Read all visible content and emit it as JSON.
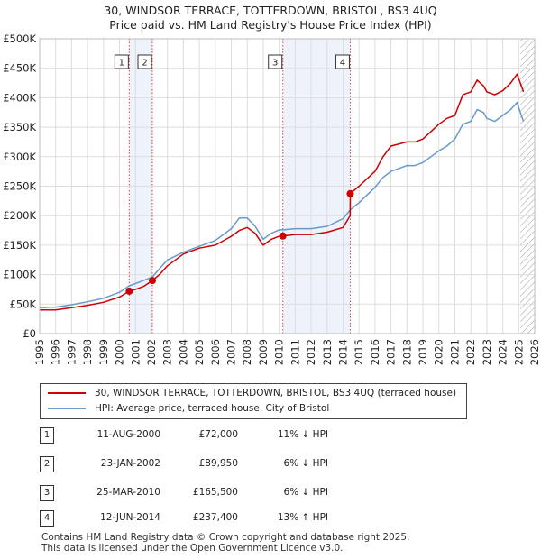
{
  "titles": {
    "line1": "30, WINDSOR TERRACE, TOTTERDOWN, BRISTOL, BS3 4UQ",
    "line2": "Price paid vs. HM Land Registry's House Price Index (HPI)"
  },
  "colors": {
    "property_line": "#cc0000",
    "hpi_line": "#6699cc",
    "highlight_band": "#eef2fb",
    "vline": "#dd4444",
    "grid": "#dddddd",
    "sale_dot": "#cc0000"
  },
  "legend": {
    "property_label": "30, WINDSOR TERRACE, TOTTERDOWN, BRISTOL, BS3 4UQ (terraced house)",
    "hpi_label": "HPI: Average price, terraced house, City of Bristol"
  },
  "transactions": [
    {
      "num": "1",
      "date": "11-AUG-2000",
      "price": "£72,000",
      "hpi": "11% ↓ HPI"
    },
    {
      "num": "2",
      "date": "23-JAN-2002",
      "price": "£89,950",
      "hpi": "6% ↓ HPI"
    },
    {
      "num": "3",
      "date": "25-MAR-2010",
      "price": "£165,500",
      "hpi": "6% ↓ HPI"
    },
    {
      "num": "4",
      "date": "12-JUN-2014",
      "price": "£237,400",
      "hpi": "13% ↑ HPI"
    }
  ],
  "footer": {
    "line1": "Contains HM Land Registry data © Crown copyright and database right 2025.",
    "line2": "This data is licensed under the Open Government Licence v3.0."
  },
  "chart_data": {
    "type": "line",
    "title": "30, WINDSOR TERRACE, TOTTERDOWN, BRISTOL, BS3 4UQ",
    "subtitle": "Price paid vs. HM Land Registry's House Price Index (HPI)",
    "xlabel": "",
    "ylabel": "",
    "xlim": [
      1995,
      2026
    ],
    "ylim": [
      0,
      500000
    ],
    "y_ticks": [
      0,
      50000,
      100000,
      150000,
      200000,
      250000,
      300000,
      350000,
      400000,
      450000,
      500000
    ],
    "y_tick_labels": [
      "£0",
      "£50K",
      "£100K",
      "£150K",
      "£200K",
      "£250K",
      "£300K",
      "£350K",
      "£400K",
      "£450K",
      "£500K"
    ],
    "x_ticks": [
      1995,
      1996,
      1997,
      1998,
      1999,
      2000,
      2001,
      2002,
      2003,
      2004,
      2005,
      2006,
      2007,
      2008,
      2009,
      2010,
      2011,
      2012,
      2013,
      2014,
      2015,
      2016,
      2017,
      2018,
      2019,
      2020,
      2021,
      2022,
      2023,
      2024,
      2025,
      2026
    ],
    "x_tick_labels": [
      "1995",
      "1996",
      "1997",
      "1998",
      "1999",
      "2000",
      "2001",
      "2002",
      "2003",
      "2004",
      "2005",
      "2006",
      "2007",
      "2008",
      "2009",
      "2010",
      "2011",
      "2012",
      "2013",
      "2014",
      "2015",
      "2016",
      "2017",
      "2018",
      "2019",
      "2020",
      "2021",
      "2022",
      "2023",
      "2024",
      "2025",
      "2026"
    ],
    "grid": true,
    "shaded_ranges": [
      [
        2000.61,
        2002.06
      ],
      [
        2010.23,
        2014.45
      ]
    ],
    "future_hatch_from": 2025.1,
    "series": [
      {
        "name": "30, WINDSOR TERRACE, TOTTERDOWN, BRISTOL, BS3 4UQ (terraced house)",
        "x": [
          1995.0,
          1996.0,
          1997.0,
          1998.0,
          1999.0,
          2000.0,
          2000.61,
          2001.0,
          2001.5,
          2002.06,
          2002.5,
          2003.0,
          2004.0,
          2005.0,
          2006.0,
          2007.0,
          2007.5,
          2008.0,
          2008.5,
          2009.0,
          2009.5,
          2010.0,
          2010.23,
          2011.0,
          2012.0,
          2013.0,
          2014.0,
          2014.44,
          2014.45,
          2015.0,
          2016.0,
          2016.5,
          2017.0,
          2018.0,
          2018.5,
          2019.0,
          2020.0,
          2020.5,
          2021.0,
          2021.5,
          2022.0,
          2022.4,
          2022.8,
          2023.0,
          2023.5,
          2024.0,
          2024.5,
          2024.9,
          2025.1,
          2025.3
        ],
        "values": [
          40000,
          40000,
          44000,
          48000,
          53000,
          62000,
          72000,
          75000,
          80000,
          89950,
          100000,
          115000,
          135000,
          145000,
          150000,
          165000,
          175000,
          180000,
          170000,
          150000,
          160000,
          165000,
          165500,
          168000,
          168000,
          172000,
          180000,
          200000,
          237400,
          250000,
          275000,
          300000,
          318000,
          325000,
          325000,
          330000,
          355000,
          365000,
          370000,
          405000,
          410000,
          430000,
          420000,
          410000,
          405000,
          412000,
          425000,
          440000,
          425000,
          410000
        ]
      },
      {
        "name": "HPI: Average price, terraced house, City of Bristol",
        "x": [
          1995.0,
          1996.0,
          1997.0,
          1998.0,
          1999.0,
          2000.0,
          2000.61,
          2001.0,
          2001.5,
          2002.06,
          2002.5,
          2003.0,
          2004.0,
          2005.0,
          2006.0,
          2007.0,
          2007.5,
          2008.0,
          2008.5,
          2009.0,
          2009.5,
          2010.0,
          2010.23,
          2011.0,
          2012.0,
          2013.0,
          2014.0,
          2014.45,
          2015.0,
          2016.0,
          2016.5,
          2017.0,
          2018.0,
          2018.5,
          2019.0,
          2020.0,
          2020.5,
          2021.0,
          2021.5,
          2022.0,
          2022.4,
          2022.8,
          2023.0,
          2023.5,
          2024.0,
          2024.5,
          2024.9,
          2025.1,
          2025.3
        ],
        "values": [
          44000,
          45000,
          49000,
          54000,
          60000,
          70000,
          81000,
          85000,
          90000,
          96000,
          110000,
          125000,
          138000,
          148000,
          158000,
          178000,
          196000,
          196000,
          182000,
          160000,
          170000,
          176000,
          176000,
          178000,
          178000,
          182000,
          195000,
          210000,
          222000,
          248000,
          265000,
          275000,
          285000,
          285000,
          290000,
          310000,
          318000,
          330000,
          355000,
          360000,
          380000,
          375000,
          365000,
          360000,
          370000,
          380000,
          392000,
          375000,
          360000
        ]
      }
    ],
    "sales": [
      {
        "label": "1",
        "x": 2000.61,
        "y": 72000
      },
      {
        "label": "2",
        "x": 2002.06,
        "y": 89950
      },
      {
        "label": "3",
        "x": 2010.23,
        "y": 165500
      },
      {
        "label": "4",
        "x": 2014.45,
        "y": 237400
      }
    ]
  }
}
